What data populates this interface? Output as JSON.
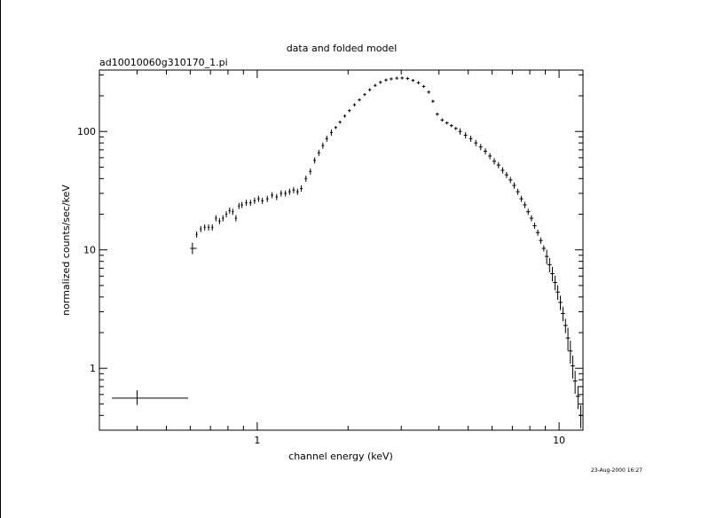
{
  "chart_data": {
    "type": "scatter",
    "title": "data and folded model",
    "subtitle": "ad10010060g310170_1.pi",
    "xlabel": "channel energy (keV)",
    "ylabel": "normalized counts/sec/keV",
    "x_scale": "log",
    "y_scale": "log",
    "xlim": [
      0.3,
      12.0
    ],
    "ylim": [
      0.3,
      330
    ],
    "x_tick_labels": [
      "1",
      "10"
    ],
    "y_tick_labels": [
      "1",
      "10",
      "100"
    ],
    "grid": false,
    "legend": "none",
    "timestamp": "23-Aug-2000 16:27",
    "series": [
      {
        "points": [
          {
            "x": 0.4,
            "y": 0.56,
            "xerr": [
              0.33,
              0.59
            ],
            "yerr": [
              0.49,
              0.65
            ]
          },
          {
            "x": 0.61,
            "y": 10.3,
            "xerr": [
              0.6,
              0.63
            ],
            "yerr": [
              9.2,
              11.5
            ]
          },
          {
            "x": 0.63,
            "y": 13.5
          },
          {
            "x": 0.65,
            "y": 15
          },
          {
            "x": 0.67,
            "y": 15.5
          },
          {
            "x": 0.69,
            "y": 15.5
          },
          {
            "x": 0.71,
            "y": 15.5
          },
          {
            "x": 0.73,
            "y": 18.5
          },
          {
            "x": 0.75,
            "y": 17.5
          },
          {
            "x": 0.77,
            "y": 18.5
          },
          {
            "x": 0.79,
            "y": 20
          },
          {
            "x": 0.81,
            "y": 21.5
          },
          {
            "x": 0.83,
            "y": 21
          },
          {
            "x": 0.85,
            "y": 18.5
          },
          {
            "x": 0.87,
            "y": 23.5
          },
          {
            "x": 0.89,
            "y": 24
          },
          {
            "x": 0.92,
            "y": 25
          },
          {
            "x": 0.95,
            "y": 25
          },
          {
            "x": 0.98,
            "y": 26
          },
          {
            "x": 1.01,
            "y": 27
          },
          {
            "x": 1.04,
            "y": 26
          },
          {
            "x": 1.08,
            "y": 27
          },
          {
            "x": 1.12,
            "y": 29
          },
          {
            "x": 1.16,
            "y": 28
          },
          {
            "x": 1.2,
            "y": 30
          },
          {
            "x": 1.24,
            "y": 30
          },
          {
            "x": 1.28,
            "y": 31
          },
          {
            "x": 1.32,
            "y": 32
          },
          {
            "x": 1.36,
            "y": 31
          },
          {
            "x": 1.4,
            "y": 33
          },
          {
            "x": 1.45,
            "y": 40
          },
          {
            "x": 1.5,
            "y": 46
          },
          {
            "x": 1.55,
            "y": 57
          },
          {
            "x": 1.6,
            "y": 66
          },
          {
            "x": 1.65,
            "y": 76
          },
          {
            "x": 1.7,
            "y": 87
          },
          {
            "x": 1.76,
            "y": 98
          },
          {
            "x": 1.82,
            "y": 108
          },
          {
            "x": 1.88,
            "y": 120
          },
          {
            "x": 1.95,
            "y": 135
          },
          {
            "x": 2.02,
            "y": 150
          },
          {
            "x": 2.1,
            "y": 168
          },
          {
            "x": 2.18,
            "y": 185
          },
          {
            "x": 2.27,
            "y": 205
          },
          {
            "x": 2.36,
            "y": 225
          },
          {
            "x": 2.46,
            "y": 245
          },
          {
            "x": 2.56,
            "y": 260
          },
          {
            "x": 2.67,
            "y": 272
          },
          {
            "x": 2.78,
            "y": 278
          },
          {
            "x": 2.9,
            "y": 282
          },
          {
            "x": 3.02,
            "y": 283
          },
          {
            "x": 3.15,
            "y": 280
          },
          {
            "x": 3.28,
            "y": 270
          },
          {
            "x": 3.42,
            "y": 258
          },
          {
            "x": 3.56,
            "y": 240
          },
          {
            "x": 3.7,
            "y": 215
          },
          {
            "x": 3.82,
            "y": 180
          },
          {
            "x": 3.95,
            "y": 140
          },
          {
            "x": 4.1,
            "y": 125
          },
          {
            "x": 4.25,
            "y": 118
          },
          {
            "x": 4.4,
            "y": 112
          },
          {
            "x": 4.55,
            "y": 106
          },
          {
            "x": 4.7,
            "y": 100
          },
          {
            "x": 4.9,
            "y": 93
          },
          {
            "x": 5.1,
            "y": 87
          },
          {
            "x": 5.3,
            "y": 80
          },
          {
            "x": 5.5,
            "y": 74
          },
          {
            "x": 5.7,
            "y": 68
          },
          {
            "x": 5.9,
            "y": 62
          },
          {
            "x": 6.1,
            "y": 56
          },
          {
            "x": 6.3,
            "y": 52
          },
          {
            "x": 6.5,
            "y": 47
          },
          {
            "x": 6.7,
            "y": 43
          },
          {
            "x": 6.9,
            "y": 39
          },
          {
            "x": 7.1,
            "y": 35
          },
          {
            "x": 7.3,
            "y": 31
          },
          {
            "x": 7.5,
            "y": 27
          },
          {
            "x": 7.7,
            "y": 24
          },
          {
            "x": 7.9,
            "y": 21
          },
          {
            "x": 8.1,
            "y": 18.5
          },
          {
            "x": 8.3,
            "y": 16
          },
          {
            "x": 8.5,
            "y": 14
          },
          {
            "x": 8.7,
            "y": 12
          },
          {
            "x": 8.9,
            "y": 10.3
          },
          {
            "x": 9.1,
            "y": 8.8
          },
          {
            "x": 9.3,
            "y": 7.5
          },
          {
            "x": 9.5,
            "y": 6.3
          },
          {
            "x": 9.7,
            "y": 5.3
          },
          {
            "x": 9.9,
            "y": 4.4
          },
          {
            "x": 10.1,
            "y": 3.6
          },
          {
            "x": 10.3,
            "y": 2.9
          },
          {
            "x": 10.5,
            "y": 2.3
          },
          {
            "x": 10.7,
            "y": 1.8
          },
          {
            "x": 10.9,
            "y": 1.4
          },
          {
            "x": 11.1,
            "y": 1.05
          },
          {
            "x": 11.3,
            "y": 0.78
          },
          {
            "x": 11.55,
            "y": 0.58
          },
          {
            "x": 11.8,
            "y": 0.4
          }
        ]
      }
    ]
  }
}
